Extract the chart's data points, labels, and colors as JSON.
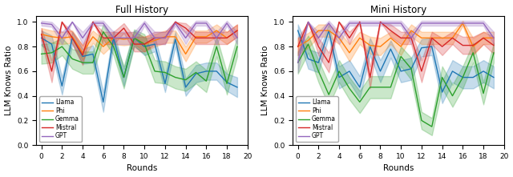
{
  "rounds": [
    0,
    1,
    2,
    3,
    4,
    5,
    6,
    7,
    8,
    9,
    10,
    11,
    12,
    13,
    14,
    15,
    16,
    17,
    18,
    19
  ],
  "full_history": {
    "Llama": {
      "mean": [
        0.87,
        0.82,
        0.48,
        0.87,
        0.72,
        0.74,
        0.35,
        0.87,
        0.55,
        0.87,
        0.8,
        0.82,
        0.5,
        0.86,
        0.47,
        0.58,
        0.6,
        0.6,
        0.51,
        0.47
      ],
      "std": [
        0.06,
        0.07,
        0.07,
        0.05,
        0.06,
        0.07,
        0.08,
        0.06,
        0.07,
        0.06,
        0.07,
        0.06,
        0.07,
        0.06,
        0.07,
        0.07,
        0.07,
        0.07,
        0.07,
        0.08
      ]
    },
    "Phi": {
      "mean": [
        0.9,
        0.88,
        0.87,
        0.88,
        0.75,
        0.88,
        0.8,
        0.87,
        0.86,
        0.87,
        0.82,
        0.85,
        0.88,
        0.88,
        0.74,
        0.88,
        0.88,
        0.93,
        0.87,
        0.93
      ],
      "std": [
        0.05,
        0.05,
        0.05,
        0.05,
        0.06,
        0.05,
        0.06,
        0.05,
        0.05,
        0.05,
        0.06,
        0.05,
        0.05,
        0.05,
        0.06,
        0.05,
        0.05,
        0.05,
        0.05,
        0.05
      ]
    },
    "Gemma": {
      "mean": [
        0.74,
        0.75,
        0.8,
        0.7,
        0.67,
        0.67,
        0.92,
        0.8,
        0.55,
        0.87,
        0.82,
        0.6,
        0.59,
        0.55,
        0.53,
        0.59,
        0.52,
        0.8,
        0.5,
        0.8
      ],
      "std": [
        0.08,
        0.08,
        0.07,
        0.08,
        0.09,
        0.09,
        0.06,
        0.07,
        0.09,
        0.07,
        0.08,
        0.09,
        0.09,
        0.09,
        0.09,
        0.09,
        0.09,
        0.08,
        0.09,
        0.08
      ]
    },
    "Mistral": {
      "mean": [
        0.9,
        0.6,
        1.0,
        0.87,
        0.73,
        1.0,
        0.87,
        0.87,
        0.95,
        0.82,
        0.82,
        0.87,
        0.87,
        1.0,
        0.95,
        0.87,
        0.87,
        0.87,
        0.87,
        0.93
      ],
      "std": [
        0.05,
        0.09,
        0.0,
        0.05,
        0.08,
        0.0,
        0.05,
        0.05,
        0.04,
        0.06,
        0.06,
        0.05,
        0.05,
        0.0,
        0.04,
        0.05,
        0.05,
        0.05,
        0.05,
        0.05
      ]
    },
    "GPT": {
      "mean": [
        0.99,
        0.98,
        0.87,
        1.0,
        0.87,
        0.99,
        0.99,
        0.87,
        0.87,
        0.87,
        0.99,
        0.87,
        0.87,
        0.99,
        0.87,
        0.99,
        0.99,
        0.87,
        0.99,
        0.87
      ],
      "std": [
        0.02,
        0.02,
        0.05,
        0.0,
        0.05,
        0.02,
        0.02,
        0.05,
        0.05,
        0.05,
        0.02,
        0.05,
        0.05,
        0.02,
        0.05,
        0.02,
        0.02,
        0.05,
        0.02,
        0.05
      ]
    }
  },
  "mini_history": {
    "Llama": {
      "mean": [
        0.93,
        0.7,
        0.67,
        0.93,
        0.55,
        0.6,
        0.47,
        0.8,
        0.6,
        0.78,
        0.6,
        0.62,
        0.79,
        0.8,
        0.43,
        0.6,
        0.55,
        0.55,
        0.6,
        0.55
      ],
      "std": [
        0.05,
        0.08,
        0.08,
        0.05,
        0.09,
        0.09,
        0.09,
        0.07,
        0.09,
        0.07,
        0.09,
        0.09,
        0.07,
        0.07,
        0.09,
        0.09,
        0.09,
        0.09,
        0.09,
        0.09
      ]
    },
    "Phi": {
      "mean": [
        0.8,
        0.85,
        0.93,
        0.93,
        0.87,
        0.75,
        0.87,
        0.81,
        0.8,
        0.87,
        0.8,
        0.93,
        0.87,
        0.87,
        0.87,
        0.87,
        0.99,
        0.8,
        0.87,
        0.87
      ],
      "std": [
        0.07,
        0.06,
        0.05,
        0.05,
        0.05,
        0.07,
        0.05,
        0.07,
        0.07,
        0.05,
        0.07,
        0.05,
        0.05,
        0.05,
        0.05,
        0.05,
        0.02,
        0.07,
        0.05,
        0.05
      ]
    },
    "Gemma": {
      "mean": [
        0.67,
        0.82,
        0.6,
        0.41,
        0.6,
        0.46,
        0.35,
        0.47,
        0.47,
        0.47,
        0.72,
        0.62,
        0.2,
        0.15,
        0.55,
        0.4,
        0.55,
        0.75,
        0.42,
        0.75
      ],
      "std": [
        0.09,
        0.07,
        0.09,
        0.09,
        0.09,
        0.09,
        0.09,
        0.09,
        0.09,
        0.09,
        0.08,
        0.09,
        0.07,
        0.07,
        0.09,
        0.09,
        0.09,
        0.08,
        0.09,
        0.08
      ]
    },
    "Mistral": {
      "mean": [
        0.8,
        1.0,
        0.8,
        0.67,
        1.0,
        0.87,
        1.0,
        0.55,
        1.0,
        0.93,
        0.87,
        0.87,
        0.6,
        0.87,
        0.8,
        0.87,
        0.81,
        0.81,
        0.87,
        0.81
      ],
      "std": [
        0.07,
        0.0,
        0.07,
        0.08,
        0.0,
        0.05,
        0.0,
        0.09,
        0.0,
        0.05,
        0.05,
        0.05,
        0.09,
        0.05,
        0.07,
        0.05,
        0.07,
        0.07,
        0.05,
        0.07
      ]
    },
    "GPT": {
      "mean": [
        0.67,
        1.0,
        0.87,
        0.99,
        0.87,
        0.99,
        0.99,
        0.99,
        0.99,
        0.99,
        0.99,
        0.87,
        0.99,
        0.99,
        0.99,
        0.99,
        0.99,
        0.99,
        0.99,
        0.87
      ],
      "std": [
        0.08,
        0.0,
        0.05,
        0.02,
        0.05,
        0.02,
        0.02,
        0.02,
        0.02,
        0.02,
        0.02,
        0.05,
        0.02,
        0.02,
        0.02,
        0.02,
        0.02,
        0.02,
        0.02,
        0.05
      ]
    }
  },
  "colors": {
    "Llama": "#1f77b4",
    "Phi": "#ff7f0e",
    "Gemma": "#2ca02c",
    "Mistral": "#d62728",
    "GPT": "#9467bd"
  },
  "title_full": "Full History",
  "title_mini": "Mini History",
  "xlabel": "Rounds",
  "ylabel": "LLM Knows Ratio",
  "ylim": [
    0.0,
    1.05
  ],
  "xlim": [
    -0.5,
    20
  ],
  "xticks": [
    0,
    2,
    4,
    6,
    8,
    10,
    12,
    14,
    16,
    18,
    20
  ],
  "yticks": [
    0.0,
    0.2,
    0.4,
    0.6,
    0.8,
    1.0
  ],
  "figsize": [
    6.4,
    2.21
  ],
  "dpi": 100,
  "legend_loc": "lower left",
  "legend_fontsize": 5.5,
  "title_fontsize": 8.5,
  "label_fontsize": 7.5,
  "tick_fontsize": 6.5,
  "linewidth": 1.0,
  "fill_alpha": 0.25
}
